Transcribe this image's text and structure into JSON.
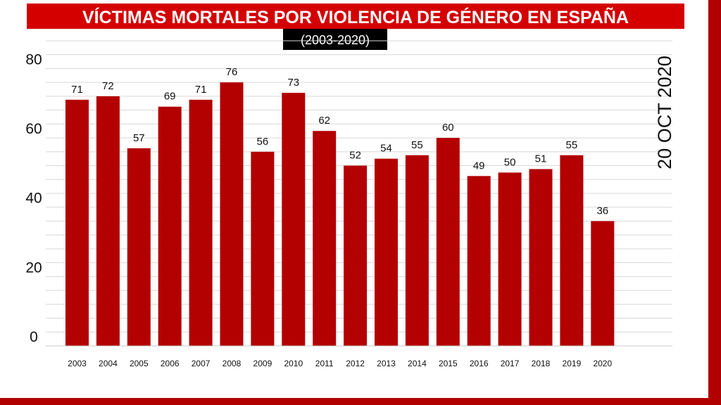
{
  "chart_data": {
    "type": "bar",
    "title": "VÍCTIMAS MORTALES POR VIOLENCIA DE GÉNERO EN ESPAÑA",
    "subtitle": "(2003-2020)",
    "annotation": "20 OCT 2020",
    "categories": [
      "2003",
      "2004",
      "2005",
      "2006",
      "2007",
      "2008",
      "2009",
      "2010",
      "2011",
      "2012",
      "2013",
      "2014",
      "2015",
      "2016",
      "2017",
      "2018",
      "2019",
      "2020"
    ],
    "values": [
      71,
      72,
      57,
      69,
      71,
      76,
      56,
      73,
      62,
      52,
      54,
      55,
      60,
      49,
      50,
      51,
      55,
      36
    ],
    "value_labels": [
      "71",
      "72",
      "57",
      "69",
      "71",
      "76",
      "56",
      "73",
      "62",
      "52",
      "54",
      "55",
      "60",
      "49",
      "50",
      "51",
      "55",
      "36"
    ],
    "yticks": [
      "0",
      "20",
      "40",
      "60",
      "80"
    ],
    "ylim": [
      0,
      88
    ],
    "xlabel": "",
    "ylabel": "",
    "grid": true,
    "bar_color": "#b30000"
  }
}
